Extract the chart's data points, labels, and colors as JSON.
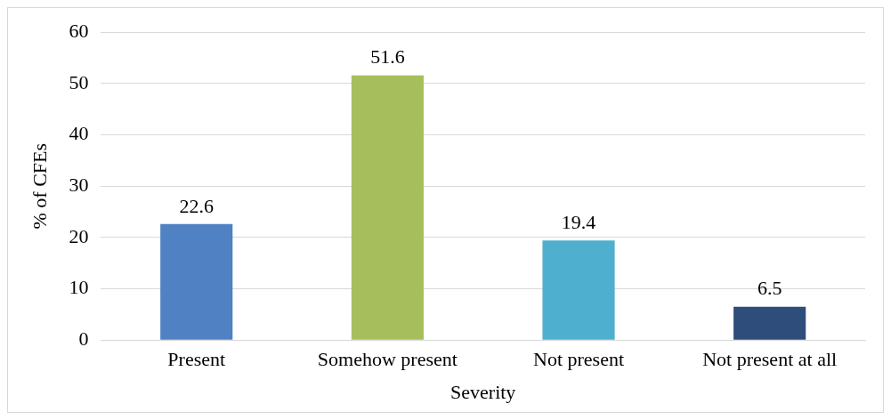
{
  "chart_data": {
    "type": "bar",
    "xlabel": "Severity",
    "ylabel": "% of CFEs",
    "categories": [
      "Present",
      "Somehow present",
      "Not present",
      "Not present at all"
    ],
    "values": [
      22.6,
      51.6,
      19.4,
      6.5
    ],
    "colors": [
      "#5081c3",
      "#a6bf5c",
      "#4fafce",
      "#2f4d7a"
    ],
    "ylim": [
      0,
      60
    ],
    "yticks": [
      0,
      10,
      20,
      30,
      40,
      50,
      60
    ],
    "grid": "y",
    "data_labels": true,
    "legend": false
  }
}
